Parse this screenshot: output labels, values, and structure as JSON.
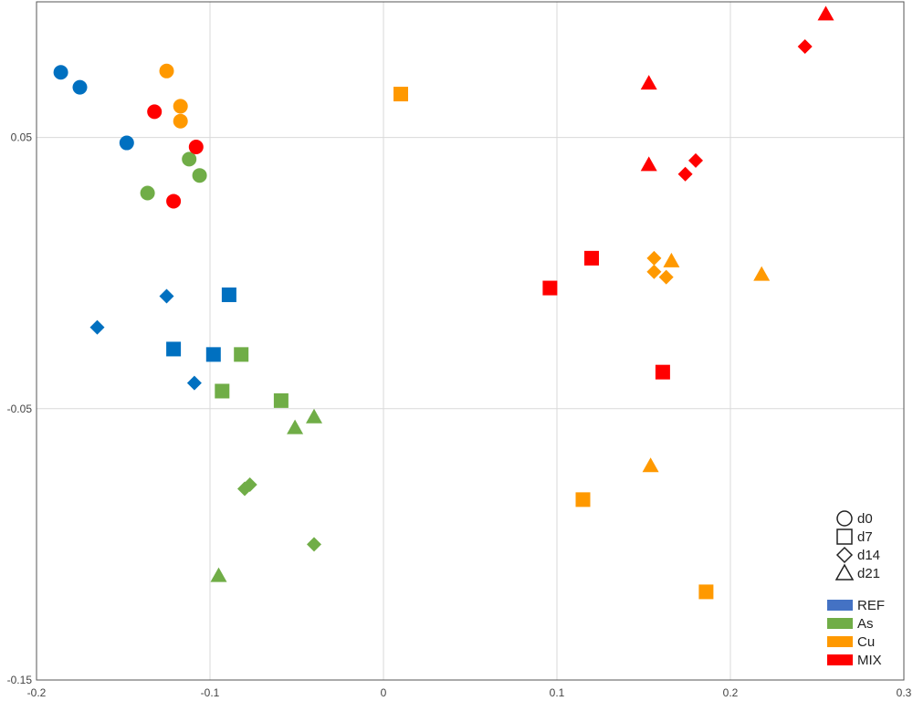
{
  "chart_data": {
    "type": "scatter",
    "title": "",
    "xlabel": "",
    "ylabel": "",
    "xlim": [
      -0.2,
      0.3
    ],
    "ylim": [
      -0.15,
      0.1
    ],
    "x_ticks": [
      -0.2,
      -0.1,
      0,
      0.1,
      0.2,
      0.3
    ],
    "x_tick_labels": [
      "-0.2",
      "-0.1",
      "0",
      "0.1",
      "0.2",
      "0.3"
    ],
    "y_ticks": [
      0.05,
      -0.05,
      -0.15
    ],
    "y_tick_labels": [
      "0.05",
      "-0.05",
      "-0.15"
    ],
    "grid": true,
    "legend_placement": "bottom-right",
    "shape_legend": [
      {
        "label": "d0",
        "shape": "circle"
      },
      {
        "label": "d7",
        "shape": "square"
      },
      {
        "label": "d14",
        "shape": "diamond"
      },
      {
        "label": "d21",
        "shape": "triangle"
      }
    ],
    "color_legend": [
      {
        "label": "REF",
        "color": "#4472C4"
      },
      {
        "label": "As",
        "color": "#70AD47"
      },
      {
        "label": "Cu",
        "color": "#FF9900"
      },
      {
        "label": "MIX",
        "color": "#FF0000"
      }
    ],
    "series": [
      {
        "name": "REF",
        "color": "#0070C0",
        "points": [
          {
            "x": -0.186,
            "y": 0.074,
            "shape": "circle"
          },
          {
            "x": -0.175,
            "y": 0.0685,
            "shape": "circle"
          },
          {
            "x": -0.148,
            "y": 0.048,
            "shape": "circle"
          },
          {
            "x": -0.089,
            "y": -0.008,
            "shape": "square"
          },
          {
            "x": -0.121,
            "y": -0.028,
            "shape": "square"
          },
          {
            "x": -0.098,
            "y": -0.03,
            "shape": "square"
          },
          {
            "x": -0.125,
            "y": -0.0085,
            "shape": "diamond"
          },
          {
            "x": -0.165,
            "y": -0.02,
            "shape": "diamond"
          },
          {
            "x": -0.109,
            "y": -0.0405,
            "shape": "diamond"
          }
        ]
      },
      {
        "name": "As",
        "color": "#70AD47",
        "points": [
          {
            "x": -0.112,
            "y": 0.042,
            "shape": "circle"
          },
          {
            "x": -0.106,
            "y": 0.036,
            "shape": "circle"
          },
          {
            "x": -0.136,
            "y": 0.0295,
            "shape": "circle"
          },
          {
            "x": -0.082,
            "y": -0.03,
            "shape": "square"
          },
          {
            "x": -0.093,
            "y": -0.0435,
            "shape": "square"
          },
          {
            "x": -0.059,
            "y": -0.047,
            "shape": "square"
          },
          {
            "x": -0.08,
            "y": -0.0795,
            "shape": "diamond"
          },
          {
            "x": -0.077,
            "y": -0.078,
            "shape": "diamond"
          },
          {
            "x": -0.04,
            "y": -0.1,
            "shape": "diamond"
          },
          {
            "x": -0.04,
            "y": -0.053,
            "shape": "triangle"
          },
          {
            "x": -0.051,
            "y": -0.057,
            "shape": "triangle"
          },
          {
            "x": -0.095,
            "y": -0.1115,
            "shape": "triangle"
          }
        ]
      },
      {
        "name": "Cu",
        "color": "#FF9900",
        "points": [
          {
            "x": -0.125,
            "y": 0.0745,
            "shape": "circle"
          },
          {
            "x": -0.117,
            "y": 0.0615,
            "shape": "circle"
          },
          {
            "x": -0.117,
            "y": 0.056,
            "shape": "circle"
          },
          {
            "x": 0.01,
            "y": 0.066,
            "shape": "square"
          },
          {
            "x": 0.115,
            "y": -0.0835,
            "shape": "square"
          },
          {
            "x": 0.186,
            "y": -0.1175,
            "shape": "square"
          },
          {
            "x": 0.156,
            "y": 0.0055,
            "shape": "diamond"
          },
          {
            "x": 0.156,
            "y": 0.0005,
            "shape": "diamond"
          },
          {
            "x": 0.163,
            "y": -0.0015,
            "shape": "diamond"
          },
          {
            "x": 0.166,
            "y": 0.0045,
            "shape": "triangle"
          },
          {
            "x": 0.218,
            "y": -0.0005,
            "shape": "triangle"
          },
          {
            "x": 0.154,
            "y": -0.071,
            "shape": "triangle"
          }
        ]
      },
      {
        "name": "MIX",
        "color": "#FF0000",
        "points": [
          {
            "x": -0.132,
            "y": 0.0595,
            "shape": "circle"
          },
          {
            "x": -0.108,
            "y": 0.0465,
            "shape": "circle"
          },
          {
            "x": -0.121,
            "y": 0.0265,
            "shape": "circle"
          },
          {
            "x": 0.12,
            "y": 0.0055,
            "shape": "square"
          },
          {
            "x": 0.096,
            "y": -0.0055,
            "shape": "square"
          },
          {
            "x": 0.161,
            "y": -0.0365,
            "shape": "square"
          },
          {
            "x": 0.243,
            "y": 0.0835,
            "shape": "diamond"
          },
          {
            "x": 0.18,
            "y": 0.0415,
            "shape": "diamond"
          },
          {
            "x": 0.174,
            "y": 0.0365,
            "shape": "diamond"
          },
          {
            "x": 0.255,
            "y": 0.0955,
            "shape": "triangle"
          },
          {
            "x": 0.153,
            "y": 0.07,
            "shape": "triangle"
          },
          {
            "x": 0.153,
            "y": 0.04,
            "shape": "triangle"
          }
        ]
      }
    ]
  }
}
